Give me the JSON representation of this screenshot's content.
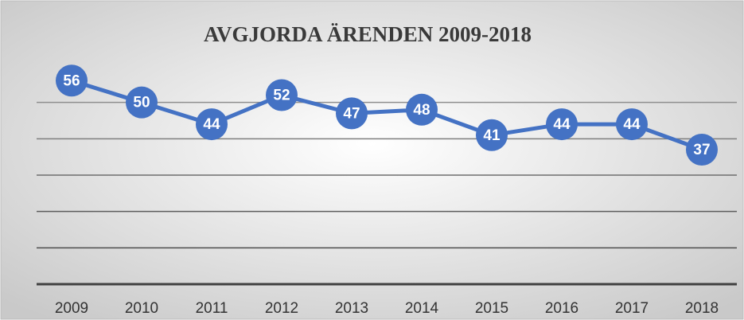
{
  "chart_data": {
    "type": "line",
    "title": "AVGJORDA ÄRENDEN 2009-2018",
    "categories": [
      "2009",
      "2010",
      "2011",
      "2012",
      "2013",
      "2014",
      "2015",
      "2016",
      "2017",
      "2018"
    ],
    "series": [
      {
        "name": "Avgjorda ärenden",
        "color": "#4472c4",
        "values": [
          56,
          50,
          44,
          52,
          47,
          48,
          41,
          44,
          44,
          37
        ]
      }
    ],
    "ylim": [
      0,
      60
    ],
    "yticks": [
      0,
      10,
      20,
      30,
      40,
      50
    ],
    "grid": true,
    "data_labels": true
  }
}
